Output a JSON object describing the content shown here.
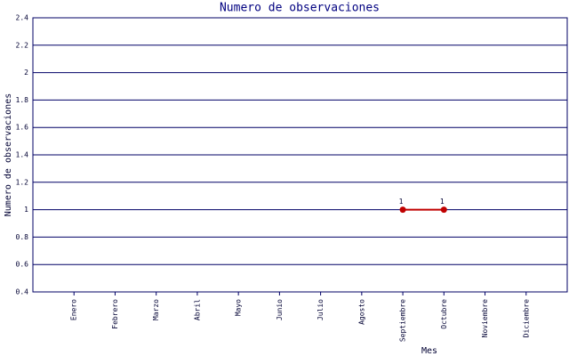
{
  "chart_data": {
    "type": "line",
    "title": "Numero de observaciones",
    "x_label": "Mes",
    "y_label": "Numero de observaciones",
    "categories": [
      "Enero",
      "Febrero",
      "Marzo",
      "Abril",
      "Mayo",
      "Junio",
      "Julio",
      "Agosto",
      "Septiembre",
      "Octubre",
      "Noviembre",
      "Diciembre"
    ],
    "series": [
      {
        "name": "Numero de observaciones",
        "color": "#c00000",
        "values": [
          null,
          null,
          null,
          null,
          null,
          null,
          null,
          null,
          1,
          1,
          null,
          null
        ]
      }
    ],
    "ylim": [
      0.4,
      2.4
    ],
    "yticks": [
      0.4,
      0.6,
      0.8,
      1,
      1.2,
      1.4,
      1.6,
      1.8,
      2,
      2.2,
      2.4
    ],
    "grid": true
  }
}
